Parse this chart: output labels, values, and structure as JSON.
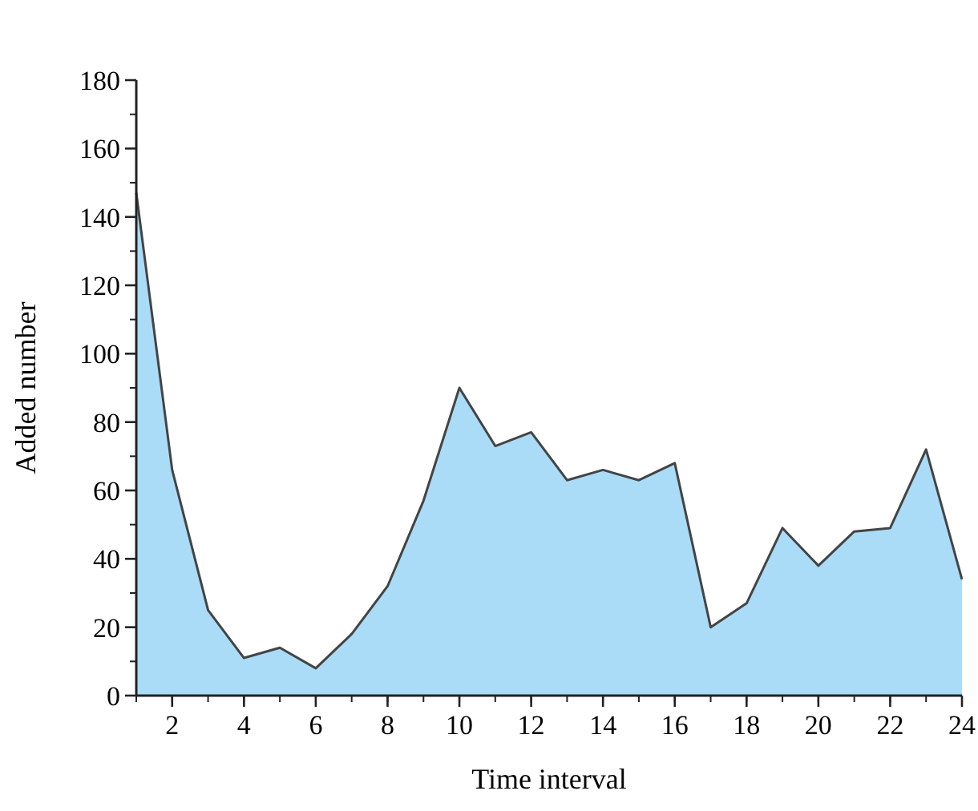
{
  "chart_data": {
    "type": "area",
    "xlabel": "Time interval",
    "ylabel": "Added number",
    "x": [
      1,
      2,
      3,
      4,
      5,
      6,
      7,
      8,
      9,
      10,
      11,
      12,
      13,
      14,
      15,
      16,
      17,
      18,
      19,
      20,
      21,
      22,
      23,
      24
    ],
    "series": [
      {
        "color": "#aadcf8",
        "values": [
          147,
          66,
          25,
          11,
          14,
          8,
          18,
          32,
          57,
          90,
          73,
          77,
          63,
          66,
          63,
          68,
          20,
          27,
          49,
          38,
          48,
          49,
          72,
          34
        ]
      }
    ],
    "xlim": [
      1,
      24
    ],
    "xticks": [
      2,
      4,
      6,
      8,
      10,
      12,
      14,
      16,
      18,
      20,
      22,
      24
    ],
    "ylim": [
      0,
      180
    ],
    "yticks": [
      0,
      20,
      40,
      60,
      80,
      100,
      120,
      140,
      160,
      180
    ],
    "grid": false
  }
}
